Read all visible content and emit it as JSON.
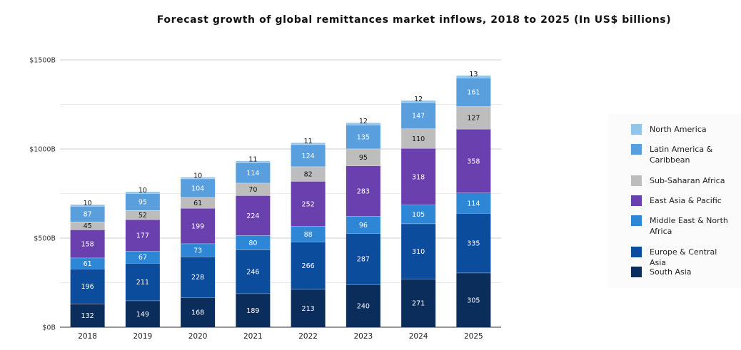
{
  "chart_data": {
    "type": "bar",
    "stacked": true,
    "title": "Forecast growth of global remittances market inflows, 2018 to 2025 (In US$ billions)",
    "categories": [
      "2018",
      "2019",
      "2020",
      "2021",
      "2022",
      "2023",
      "2024",
      "2025"
    ],
    "y_ticks": [
      "$0B",
      "$500B",
      "$1000B",
      "$1500B"
    ],
    "y_tick_values": [
      0,
      500,
      1000,
      1500
    ],
    "ylim": [
      0,
      1500
    ],
    "grid": true,
    "legend_position": "right",
    "series": [
      {
        "name": "South Asia",
        "color": "#0b2d5c",
        "values": [
          132,
          149,
          168,
          189,
          213,
          240,
          271,
          305
        ]
      },
      {
        "name": "Europe & Central Asia",
        "color": "#0c4c9c",
        "values": [
          196,
          211,
          228,
          246,
          266,
          287,
          310,
          335
        ]
      },
      {
        "name": "Middle East & North Africa",
        "color": "#2e86d6",
        "values": [
          61,
          67,
          73,
          80,
          88,
          96,
          105,
          114
        ]
      },
      {
        "name": "East Asia & Pacific",
        "color": "#6a3fae",
        "values": [
          158,
          177,
          199,
          224,
          252,
          283,
          318,
          358
        ]
      },
      {
        "name": "Sub-Saharan Africa",
        "color": "#bdbdbd",
        "values": [
          45,
          52,
          61,
          70,
          82,
          95,
          110,
          127
        ]
      },
      {
        "name": "Latin America & Caribbean",
        "color": "#5a9fdd",
        "values": [
          87,
          95,
          104,
          114,
          124,
          135,
          147,
          161
        ]
      },
      {
        "name": "North America",
        "color": "#93c4ea",
        "values": [
          10,
          10,
          10,
          11,
          11,
          12,
          12,
          13
        ]
      }
    ]
  },
  "legend": {
    "items": [
      {
        "label": "North America",
        "color": "#93c4ea"
      },
      {
        "label": "Latin America & Caribbean",
        "color": "#5a9fdd"
      },
      {
        "label": "Sub-Saharan Africa",
        "color": "#bdbdbd"
      },
      {
        "label": "East Asia & Pacific",
        "color": "#6a3fae"
      },
      {
        "label": "Middle East & North Africa",
        "color": "#2e86d6"
      },
      {
        "label": "Europe & Central Asia",
        "color": "#0c4c9c"
      },
      {
        "label": "South Asia",
        "color": "#0b2d5c"
      }
    ]
  }
}
